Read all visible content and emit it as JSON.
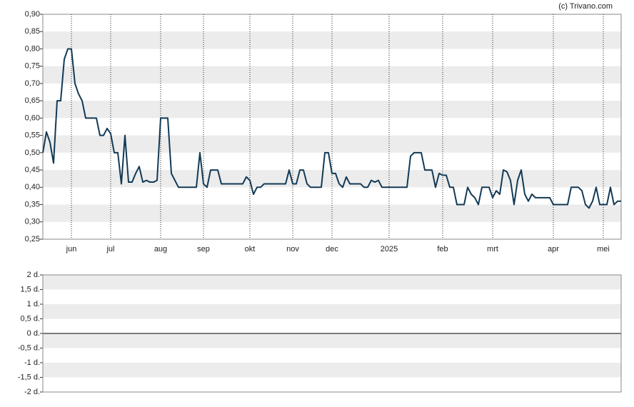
{
  "chart_data": [
    {
      "type": "line",
      "source": "(c) Trivano.com",
      "color": "#123a56",
      "ylim": [
        0.25,
        0.9
      ],
      "yticks": [
        {
          "value": 0.25,
          "label": "0,25"
        },
        {
          "value": 0.3,
          "label": "0,30"
        },
        {
          "value": 0.35,
          "label": "0,35"
        },
        {
          "value": 0.4,
          "label": "0,40"
        },
        {
          "value": 0.45,
          "label": "0,45"
        },
        {
          "value": 0.5,
          "label": "0,50"
        },
        {
          "value": 0.55,
          "label": "0,55"
        },
        {
          "value": 0.6,
          "label": "0,60"
        },
        {
          "value": 0.65,
          "label": "0,65"
        },
        {
          "value": 0.7,
          "label": "0,70"
        },
        {
          "value": 0.75,
          "label": "0,75"
        },
        {
          "value": 0.8,
          "label": "0,80"
        },
        {
          "value": 0.85,
          "label": "0,85"
        },
        {
          "value": 0.9,
          "label": "0,90"
        }
      ],
      "categories": [
        null,
        null,
        null,
        null,
        null,
        null,
        null,
        null,
        "jun",
        null,
        null,
        null,
        null,
        null,
        null,
        null,
        null,
        null,
        null,
        "jul",
        null,
        null,
        null,
        null,
        null,
        null,
        null,
        null,
        null,
        null,
        null,
        null,
        null,
        "aug",
        null,
        null,
        null,
        null,
        null,
        null,
        null,
        null,
        null,
        null,
        null,
        "sep",
        null,
        null,
        null,
        null,
        null,
        null,
        null,
        null,
        null,
        null,
        null,
        null,
        "okt",
        null,
        null,
        null,
        null,
        null,
        null,
        null,
        null,
        null,
        null,
        null,
        "nov",
        null,
        null,
        null,
        null,
        null,
        null,
        null,
        null,
        null,
        null,
        "dec",
        null,
        null,
        null,
        null,
        null,
        null,
        null,
        null,
        null,
        null,
        null,
        null,
        null,
        null,
        null,
        "2025",
        null,
        null,
        null,
        null,
        null,
        null,
        null,
        null,
        null,
        null,
        null,
        null,
        null,
        null,
        "feb",
        null,
        null,
        null,
        null,
        null,
        null,
        null,
        null,
        null,
        null,
        null,
        null,
        null,
        "mrt",
        null,
        null,
        null,
        null,
        null,
        null,
        null,
        null,
        null,
        null,
        null,
        null,
        null,
        null,
        null,
        null,
        "apr",
        null,
        null,
        null,
        null,
        null,
        null,
        null,
        null,
        null,
        null,
        null,
        null,
        null,
        "mei",
        null,
        null,
        null,
        null,
        null
      ],
      "values": [
        0.5,
        0.56,
        0.53,
        0.47,
        0.65,
        0.65,
        0.77,
        0.8,
        0.8,
        0.7,
        0.67,
        0.65,
        0.6,
        0.6,
        0.6,
        0.6,
        0.55,
        0.55,
        0.57,
        0.555,
        0.5,
        0.5,
        0.41,
        0.55,
        0.415,
        0.415,
        0.44,
        0.46,
        0.415,
        0.42,
        0.415,
        0.415,
        0.42,
        0.6,
        0.6,
        0.6,
        0.44,
        0.42,
        0.4,
        0.4,
        0.4,
        0.4,
        0.4,
        0.4,
        0.5,
        0.41,
        0.4,
        0.45,
        0.45,
        0.45,
        0.41,
        0.41,
        0.41,
        0.41,
        0.41,
        0.41,
        0.41,
        0.43,
        0.42,
        0.38,
        0.4,
        0.4,
        0.41,
        0.41,
        0.41,
        0.41,
        0.41,
        0.41,
        0.41,
        0.45,
        0.41,
        0.41,
        0.45,
        0.45,
        0.41,
        0.4,
        0.4,
        0.4,
        0.4,
        0.5,
        0.5,
        0.44,
        0.44,
        0.41,
        0.4,
        0.43,
        0.41,
        0.41,
        0.41,
        0.41,
        0.4,
        0.4,
        0.42,
        0.415,
        0.42,
        0.4,
        0.4,
        0.4,
        0.4,
        0.4,
        0.4,
        0.4,
        0.4,
        0.49,
        0.5,
        0.5,
        0.5,
        0.45,
        0.45,
        0.45,
        0.4,
        0.44,
        0.435,
        0.435,
        0.4,
        0.4,
        0.35,
        0.35,
        0.35,
        0.4,
        0.38,
        0.37,
        0.35,
        0.4,
        0.4,
        0.4,
        0.37,
        0.39,
        0.38,
        0.45,
        0.445,
        0.42,
        0.35,
        0.42,
        0.45,
        0.38,
        0.36,
        0.38,
        0.37,
        0.37,
        0.37,
        0.37,
        0.37,
        0.35,
        0.35,
        0.35,
        0.35,
        0.35,
        0.4,
        0.4,
        0.4,
        0.39,
        0.35,
        0.34,
        0.36,
        0.4,
        0.35,
        0.35,
        0.35,
        0.4,
        0.35,
        0.36,
        0.36
      ]
    },
    {
      "type": "bar",
      "values": [],
      "ylim": [
        -2,
        2
      ],
      "yticks": [
        {
          "value": -2,
          "label": "-2 d."
        },
        {
          "value": -1.5,
          "label": "-1,5 d."
        },
        {
          "value": -1,
          "label": "-1 d."
        },
        {
          "value": -0.5,
          "label": "-0,5 d."
        },
        {
          "value": 0,
          "label": "0 d."
        },
        {
          "value": 0.5,
          "label": "0,5 d."
        },
        {
          "value": 1,
          "label": "1 d."
        },
        {
          "value": 1.5,
          "label": "1,5 d."
        },
        {
          "value": 2,
          "label": "2 d."
        }
      ]
    }
  ]
}
